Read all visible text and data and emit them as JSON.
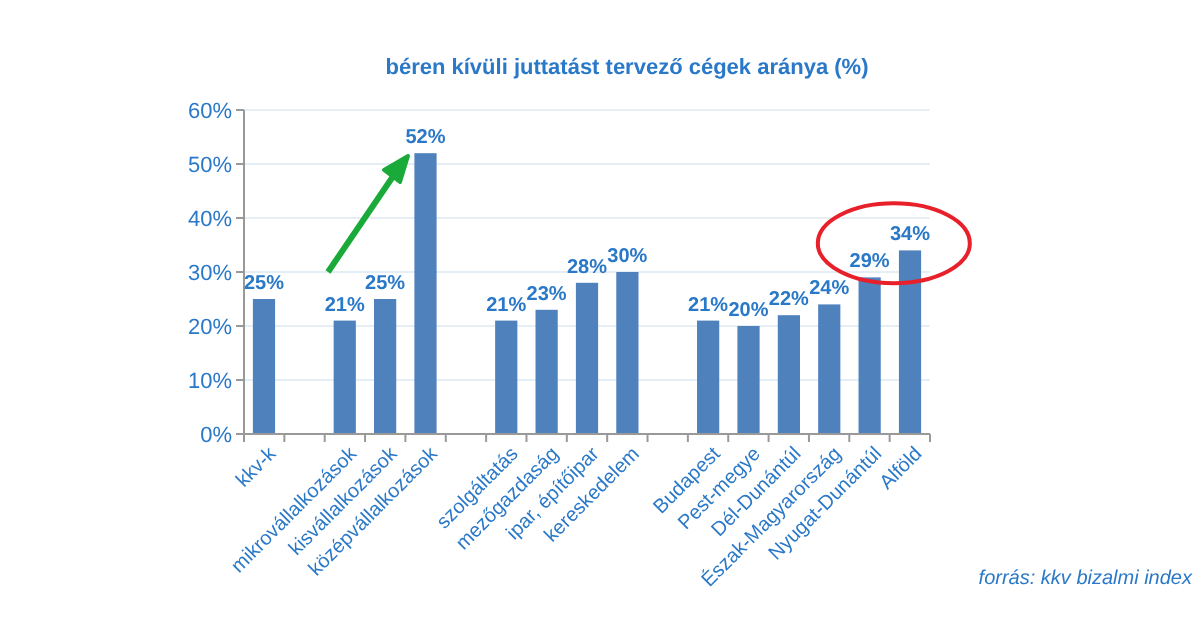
{
  "chart_data": {
    "type": "bar",
    "title": "béren kívüli juttatást  tervező cégek aránya (%)",
    "categories": [
      "kkv-k",
      null,
      "mikrovállalkozások",
      "kisvállalkozások",
      "középvállalkozások",
      null,
      "szolgáltatás",
      "mezőgazdaság",
      "ipar, építőipar",
      "kereskedelem",
      null,
      "Budapest",
      "Pest-megye",
      "Dél-Dunántúl",
      "Észak-Magyarország",
      "Nyugat-Dunántúl",
      "Alföld"
    ],
    "values": [
      25,
      null,
      21,
      25,
      52,
      null,
      21,
      23,
      28,
      30,
      null,
      21,
      20,
      22,
      24,
      29,
      34
    ],
    "value_labels": [
      "25%",
      null,
      "21%",
      "25%",
      "52%",
      null,
      "21%",
      "23%",
      "28%",
      "30%",
      null,
      "21%",
      "20%",
      "22%",
      "24%",
      "29%",
      "34%"
    ],
    "color": "#4f81bd",
    "ylim": [
      0,
      60
    ],
    "yticks": [
      {
        "value": 0,
        "label": "0%"
      },
      {
        "value": 10,
        "label": "10%"
      },
      {
        "value": 20,
        "label": "20%"
      },
      {
        "value": 30,
        "label": "30%"
      },
      {
        "value": 40,
        "label": "40%"
      },
      {
        "value": 50,
        "label": "50%"
      },
      {
        "value": 60,
        "label": "60%"
      }
    ],
    "grid": "y",
    "annotations": [
      "forrás: kkv bizalmi  index"
    ]
  }
}
